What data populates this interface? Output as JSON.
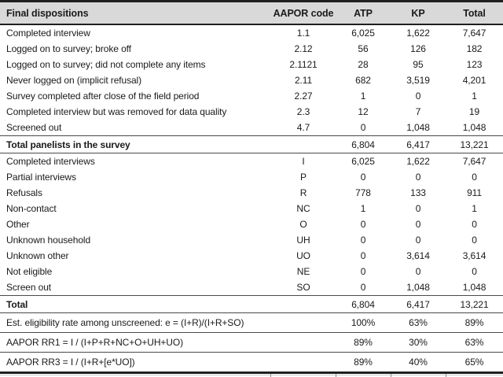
{
  "table": {
    "columns": [
      "Final dispositions",
      "AAPOR code",
      "ATP",
      "KP",
      "Total"
    ],
    "rows": [
      {
        "label": "Completed interview",
        "code": "1.1",
        "atp": "6,025",
        "kp": "1,622",
        "total": "7,647",
        "type": "data"
      },
      {
        "label": "Logged on to survey; broke off",
        "code": "2.12",
        "atp": "56",
        "kp": "126",
        "total": "182",
        "type": "data"
      },
      {
        "label": "Logged on to survey; did not complete any items",
        "code": "2.1121",
        "atp": "28",
        "kp": "95",
        "total": "123",
        "type": "data"
      },
      {
        "label": "Never logged on (implicit refusal)",
        "code": "2.11",
        "atp": "682",
        "kp": "3,519",
        "total": "4,201",
        "type": "data"
      },
      {
        "label": "Survey completed after close of the field period",
        "code": "2.27",
        "atp": "1",
        "kp": "0",
        "total": "1",
        "type": "data"
      },
      {
        "label": "Completed interview but was removed for data quality",
        "code": "2.3",
        "atp": "12",
        "kp": "7",
        "total": "19",
        "type": "data"
      },
      {
        "label": "Screened out",
        "code": "4.7",
        "atp": "0",
        "kp": "1,048",
        "total": "1,048",
        "type": "data"
      },
      {
        "label": "Total panelists in the survey",
        "code": "",
        "atp": "6,804",
        "kp": "6,417",
        "total": "13,221",
        "type": "total"
      },
      {
        "label": "Completed interviews",
        "code": "I",
        "atp": "6,025",
        "kp": "1,622",
        "total": "7,647",
        "type": "data"
      },
      {
        "label": "Partial interviews",
        "code": "P",
        "atp": "0",
        "kp": "0",
        "total": "0",
        "type": "data"
      },
      {
        "label": "Refusals",
        "code": "R",
        "atp": "778",
        "kp": "133",
        "total": "911",
        "type": "data"
      },
      {
        "label": "Non-contact",
        "code": "NC",
        "atp": "1",
        "kp": "0",
        "total": "1",
        "type": "data"
      },
      {
        "label": "Other",
        "code": "O",
        "atp": "0",
        "kp": "0",
        "total": "0",
        "type": "data"
      },
      {
        "label": "Unknown household",
        "code": "UH",
        "atp": "0",
        "kp": "0",
        "total": "0",
        "type": "data"
      },
      {
        "label": "Unknown other",
        "code": "UO",
        "atp": "0",
        "kp": "3,614",
        "total": "3,614",
        "type": "data"
      },
      {
        "label": "Not eligible",
        "code": "NE",
        "atp": "0",
        "kp": "0",
        "total": "0",
        "type": "data"
      },
      {
        "label": "Screen out",
        "code": "SO",
        "atp": "0",
        "kp": "1,048",
        "total": "1,048",
        "type": "data"
      },
      {
        "label": "Total",
        "code": "",
        "atp": "6,804",
        "kp": "6,417",
        "total": "13,221",
        "type": "total"
      },
      {
        "label": "Est. eligibility rate among unscreened: e = (I+R)/(I+R+SO)",
        "code": "",
        "atp": "100%",
        "kp": "63%",
        "total": "89%",
        "type": "footer"
      },
      {
        "label": "AAPOR RR1 = I / (I+P+R+NC+O+UH+UO)",
        "code": "",
        "atp": "89%",
        "kp": "30%",
        "total": "63%",
        "type": "footer"
      },
      {
        "label": "AAPOR RR3 = I / (I+R+[e*UO])",
        "code": "",
        "atp": "89%",
        "kp": "40%",
        "total": "65%",
        "type": "footer"
      }
    ]
  },
  "colors": {
    "header_bg": "#d9d9d9",
    "border_dark": "#1f1f1f",
    "rule_mid": "#4a4a4a",
    "text": "#1a1a1a"
  }
}
